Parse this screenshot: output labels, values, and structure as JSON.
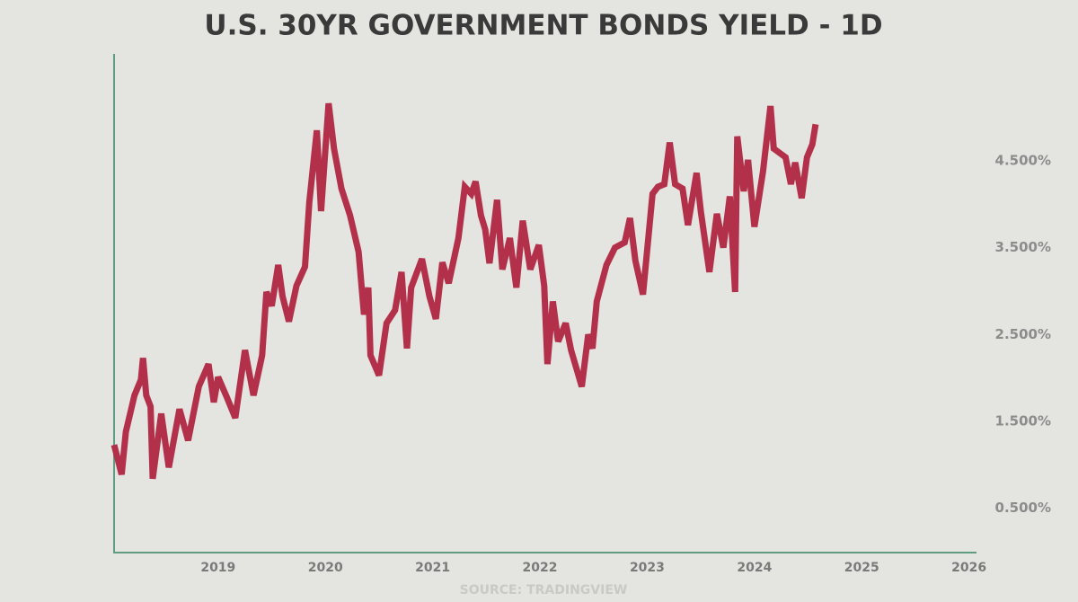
{
  "chart_data": {
    "type": "line",
    "title": "U.S. 30YR GOVERNMENT BONDS YIELD - 1D",
    "source": "SOURCE: TRADINGVIEW",
    "xlim": [
      2018.03,
      2026.07
    ],
    "xticks": [
      2019,
      2020,
      2021,
      2022,
      2023,
      2024,
      2025,
      2026
    ],
    "ylim": [
      0,
      5.73
    ],
    "yticks": [
      {
        "value": 0.5,
        "label": "0.500%"
      },
      {
        "value": 1.5,
        "label": "1.500%"
      },
      {
        "value": 2.5,
        "label": "2.500%"
      },
      {
        "value": 3.5,
        "label": "3.500%"
      },
      {
        "value": 4.5,
        "label": "4.500%"
      }
    ],
    "grid": false,
    "series": [
      {
        "color": "#b3304b",
        "x": [
          2018.03,
          2018.1,
          2018.14,
          2018.22,
          2018.28,
          2018.3,
          2018.33,
          2018.37,
          2018.39,
          2018.47,
          2018.54,
          2018.64,
          2018.72,
          2018.82,
          2018.91,
          2018.96,
          2019.0,
          2019.08,
          2019.16,
          2019.25,
          2019.33,
          2019.41,
          2019.45,
          2019.5,
          2019.56,
          2019.6,
          2019.66,
          2019.73,
          2019.81,
          2019.85,
          2019.92,
          2019.96,
          2020.03,
          2020.08,
          2020.15,
          2020.23,
          2020.31,
          2020.36,
          2020.4,
          2020.42,
          2020.5,
          2020.57,
          2020.65,
          2020.71,
          2020.76,
          2020.8,
          2020.9,
          2020.97,
          2021.03,
          2021.09,
          2021.15,
          2021.24,
          2021.3,
          2021.36,
          2021.4,
          2021.45,
          2021.49,
          2021.53,
          2021.6,
          2021.65,
          2021.72,
          2021.78,
          2021.84,
          2021.91,
          2021.99,
          2022.04,
          2022.07,
          2022.12,
          2022.17,
          2022.24,
          2022.29,
          2022.39,
          2022.45,
          2022.49,
          2022.53,
          2022.62,
          2022.7,
          2022.79,
          2022.84,
          2022.89,
          2022.96,
          2023.05,
          2023.1,
          2023.16,
          2023.21,
          2023.26,
          2023.33,
          2023.38,
          2023.46,
          2023.5,
          2023.58,
          2023.65,
          2023.71,
          2023.77,
          2023.82,
          2023.84,
          2023.9,
          2023.94,
          2024.0,
          2024.08,
          2024.15,
          2024.18,
          2024.29,
          2024.34,
          2024.38,
          2024.44,
          2024.49,
          2024.54,
          2024.57
        ],
        "values": [
          1.23,
          0.89,
          1.38,
          1.8,
          1.98,
          2.23,
          1.8,
          1.67,
          0.84,
          1.59,
          0.97,
          1.64,
          1.28,
          1.9,
          2.16,
          1.72,
          2.01,
          1.78,
          1.54,
          2.32,
          1.8,
          2.26,
          2.99,
          2.83,
          3.3,
          2.94,
          2.65,
          3.06,
          3.28,
          4.02,
          4.85,
          3.92,
          5.16,
          4.64,
          4.18,
          3.87,
          3.45,
          2.73,
          3.04,
          2.26,
          2.03,
          2.63,
          2.78,
          3.22,
          2.34,
          3.04,
          3.37,
          2.94,
          2.68,
          3.33,
          3.09,
          3.61,
          4.2,
          4.12,
          4.26,
          3.87,
          3.71,
          3.32,
          4.05,
          3.25,
          3.61,
          3.04,
          3.81,
          3.25,
          3.53,
          3.06,
          2.16,
          2.88,
          2.42,
          2.63,
          2.32,
          1.9,
          2.5,
          2.34,
          2.88,
          3.3,
          3.5,
          3.56,
          3.84,
          3.35,
          2.96,
          4.12,
          4.2,
          4.23,
          4.71,
          4.23,
          4.18,
          3.76,
          4.36,
          3.92,
          3.22,
          3.89,
          3.5,
          4.09,
          2.99,
          4.78,
          4.15,
          4.51,
          3.74,
          4.38,
          5.13,
          4.64,
          4.54,
          4.23,
          4.48,
          4.07,
          4.54,
          4.69,
          4.92
        ]
      }
    ]
  }
}
